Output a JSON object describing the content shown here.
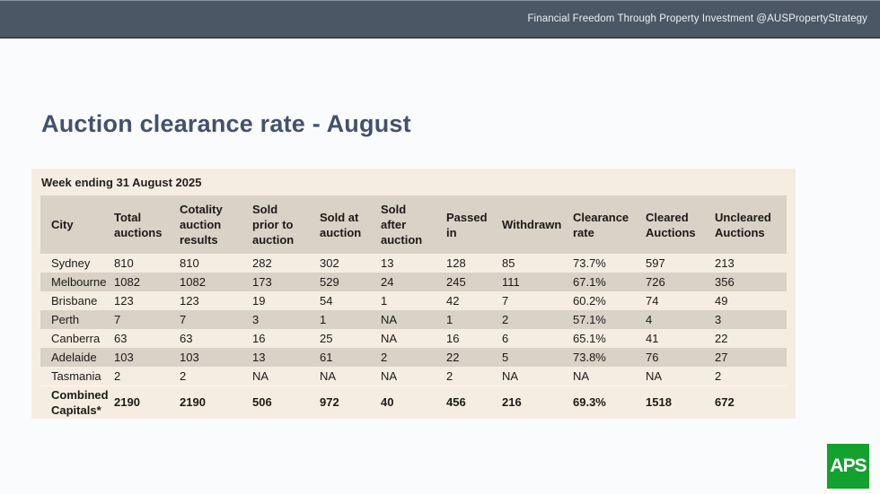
{
  "top_bar": {
    "tagline": "Financial Freedom Through Property Investment @AUSPropertyStrategy"
  },
  "slide": {
    "title": "Auction clearance rate - August"
  },
  "table": {
    "caption": "Week ending 31 August 2025",
    "columns": [
      "City",
      "Total auctions",
      "Cotality auction results",
      "Sold prior to auction",
      "Sold at auction",
      "Sold after auction",
      "Passed in",
      "Withdrawn",
      "Clearance rate",
      "Cleared Auctions",
      "Uncleared Auctions"
    ],
    "rows": [
      {
        "label": "Sydney",
        "values": [
          "810",
          "810",
          "282",
          "302",
          "13",
          "128",
          "85",
          "73.7%",
          "597",
          "213"
        ],
        "is_total": false
      },
      {
        "label": "Melbourne",
        "values": [
          "1082",
          "1082",
          "173",
          "529",
          "24",
          "245",
          "111",
          "67.1%",
          "726",
          "356"
        ],
        "is_total": false
      },
      {
        "label": "Brisbane",
        "values": [
          "123",
          "123",
          "19",
          "54",
          "1",
          "42",
          "7",
          "60.2%",
          "74",
          "49"
        ],
        "is_total": false
      },
      {
        "label": "Perth",
        "values": [
          "7",
          "7",
          "3",
          "1",
          "NA",
          "1",
          "2",
          "57.1%",
          "4",
          "3"
        ],
        "is_total": false
      },
      {
        "label": "Canberra",
        "values": [
          "63",
          "63",
          "16",
          "25",
          "NA",
          "16",
          "6",
          "65.1%",
          "41",
          "22"
        ],
        "is_total": false
      },
      {
        "label": "Adelaide",
        "values": [
          "103",
          "103",
          "13",
          "61",
          "2",
          "22",
          "5",
          "73.8%",
          "76",
          "27"
        ],
        "is_total": false
      },
      {
        "label": "Tasmania",
        "values": [
          "2",
          "2",
          "NA",
          "NA",
          "NA",
          "2",
          "NA",
          "NA",
          "NA",
          "2"
        ],
        "is_total": false
      },
      {
        "label": "Combined Capitals*",
        "values": [
          "2190",
          "2190",
          "506",
          "972",
          "40",
          "456",
          "216",
          "69.3%",
          "1518",
          "672"
        ],
        "is_total": true
      }
    ]
  },
  "logo": {
    "text": "APS"
  },
  "colors": {
    "top_bar_bg": "#4C5766",
    "title_text": "#44516D",
    "card_bg": "#F6EDE2",
    "row_shaded": "#D8D2C7",
    "logo_green": "#13A22E"
  }
}
